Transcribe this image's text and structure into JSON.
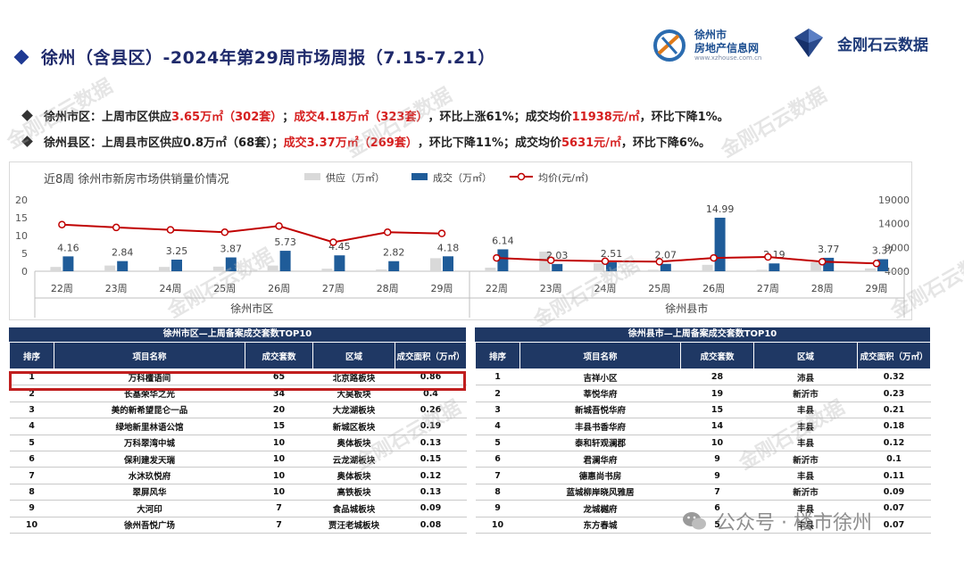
{
  "header": {
    "title": "徐州（含县区）-2024年第29周市场周报（7.15-7.21）",
    "logo1_line1": "徐州市",
    "logo1_line2": "房地产信息网",
    "logo1_url": "www.xzhouse.com.cn",
    "logo2_text": "金刚石云数据"
  },
  "summary": {
    "line1": {
      "label": "徐州市区：",
      "p1": "上周市区供应",
      "supply": "3.65万㎡（302套）",
      "p2": "；",
      "deal": "成交4.18万㎡（323套）",
      "p3": "，环比上涨61%；成交均价",
      "price": "11938元/㎡",
      "p4": "，环比下降1%。"
    },
    "line2": {
      "label": "徐州县区：",
      "p1": "上周县市区供应0.8万㎡（68套）；",
      "deal": "成交3.37万㎡（269套）",
      "p3": "，环比下降11%；成交均价",
      "price": "5631元/㎡",
      "p4": "，环比下降6%。"
    }
  },
  "colors": {
    "supply": "#d9d9d9",
    "deal": "#1f5c99",
    "price": "#c00000",
    "header_bg": "#1f3864"
  },
  "chart_data": {
    "type": "bar",
    "title": "近8周  徐州市新房市场供销量价情况",
    "legend": [
      "供应（万㎡）",
      "成交（万㎡）",
      "均价(元/㎡)"
    ],
    "legend_position": "top",
    "ylim_left": [
      0,
      20
    ],
    "yticks_left": [
      0,
      5,
      10,
      15,
      20
    ],
    "ylim_right": [
      4000,
      19000
    ],
    "yticks_right": [
      4000,
      9000,
      14000,
      19000
    ],
    "panels": [
      {
        "name": "徐州市区",
        "categories": [
          "22周",
          "23周",
          "24周",
          "25周",
          "26周",
          "27周",
          "28周",
          "29周"
        ],
        "supply": [
          1.2,
          1.6,
          1.2,
          1.3,
          1.6,
          0.7,
          0.5,
          3.65
        ],
        "deal": [
          4.16,
          2.84,
          3.25,
          3.87,
          5.73,
          4.45,
          2.82,
          4.18
        ],
        "deal_labels": [
          "4.16",
          "2.84",
          "3.25",
          "3.87",
          "5.73",
          "4.45",
          "2.82",
          "4.18"
        ],
        "price": [
          13800,
          13200,
          12700,
          12200,
          13500,
          10100,
          12200,
          11938
        ]
      },
      {
        "name": "徐州县市",
        "categories": [
          "22周",
          "23周",
          "24周",
          "25周",
          "26周",
          "27周",
          "28周",
          "29周"
        ],
        "supply": [
          1.0,
          5.5,
          2.3,
          0.4,
          1.8,
          0.4,
          2.5,
          0.8
        ],
        "deal": [
          6.14,
          2.03,
          2.51,
          2.07,
          14.99,
          2.19,
          3.77,
          3.37
        ],
        "deal_labels": [
          "6.14",
          "2.03",
          "2.51",
          "2.07",
          "14.99",
          "2.19",
          "3.77",
          "3.37"
        ],
        "price": [
          6800,
          6300,
          6100,
          6000,
          6800,
          7000,
          6000,
          5631
        ]
      }
    ]
  },
  "table_left": {
    "title": "徐州市区—上周备案成交套数TOP10",
    "headers": [
      "排序",
      "项目名称",
      "成交套数",
      "区域",
      "成交面积（万㎡）"
    ],
    "rows": [
      [
        "1",
        "万科檀语间",
        "65",
        "北京路板块",
        "0.86"
      ],
      [
        "2",
        "长基荣华之光",
        "34",
        "大吴板块",
        "0.4"
      ],
      [
        "3",
        "美的新希望昆仑一品",
        "20",
        "大龙湖板块",
        "0.26"
      ],
      [
        "4",
        "绿地新里林语公馆",
        "15",
        "新城区板块",
        "0.19"
      ],
      [
        "5",
        "万科翠湾中城",
        "10",
        "奥体板块",
        "0.13"
      ],
      [
        "6",
        "保利建发天瑞",
        "10",
        "云龙湖板块",
        "0.15"
      ],
      [
        "7",
        "水沐玖悦府",
        "10",
        "奥体板块",
        "0.12"
      ],
      [
        "8",
        "翠屏风华",
        "10",
        "高铁板块",
        "0.13"
      ],
      [
        "9",
        "大河印",
        "7",
        "食品城板块",
        "0.09"
      ],
      [
        "10",
        "徐州吾悦广场",
        "7",
        "贾汪老城板块",
        "0.08"
      ]
    ]
  },
  "table_right": {
    "title": "徐州县市—上周备案成交套数TOP10",
    "headers": [
      "排序",
      "项目名称",
      "成交套数",
      "区域",
      "成交面积（万㎡）"
    ],
    "rows": [
      [
        "1",
        "吉祥小区",
        "28",
        "沛县",
        "0.32"
      ],
      [
        "2",
        "莘悦华府",
        "19",
        "新沂市",
        "0.23"
      ],
      [
        "3",
        "新城吾悦华府",
        "15",
        "丰县",
        "0.21"
      ],
      [
        "4",
        "丰县书香华府",
        "14",
        "丰县",
        "0.18"
      ],
      [
        "5",
        "泰和轩观澜郡",
        "10",
        "丰县",
        "0.12"
      ],
      [
        "6",
        "君澜华府",
        "9",
        "新沂市",
        "0.1"
      ],
      [
        "7",
        "德惠尚书房",
        "9",
        "丰县",
        "0.11"
      ],
      [
        "8",
        "蓝城柳岸晓风雅居",
        "7",
        "新沂市",
        "0.09"
      ],
      [
        "9",
        "龙城樾府",
        "6",
        "丰县",
        "0.07"
      ],
      [
        "10",
        "东方春城",
        "5",
        "丰县",
        "0.07"
      ]
    ]
  },
  "watermark": "金刚石云数据",
  "footer": {
    "wechat_text": "公众号 · 楼市徐州"
  }
}
